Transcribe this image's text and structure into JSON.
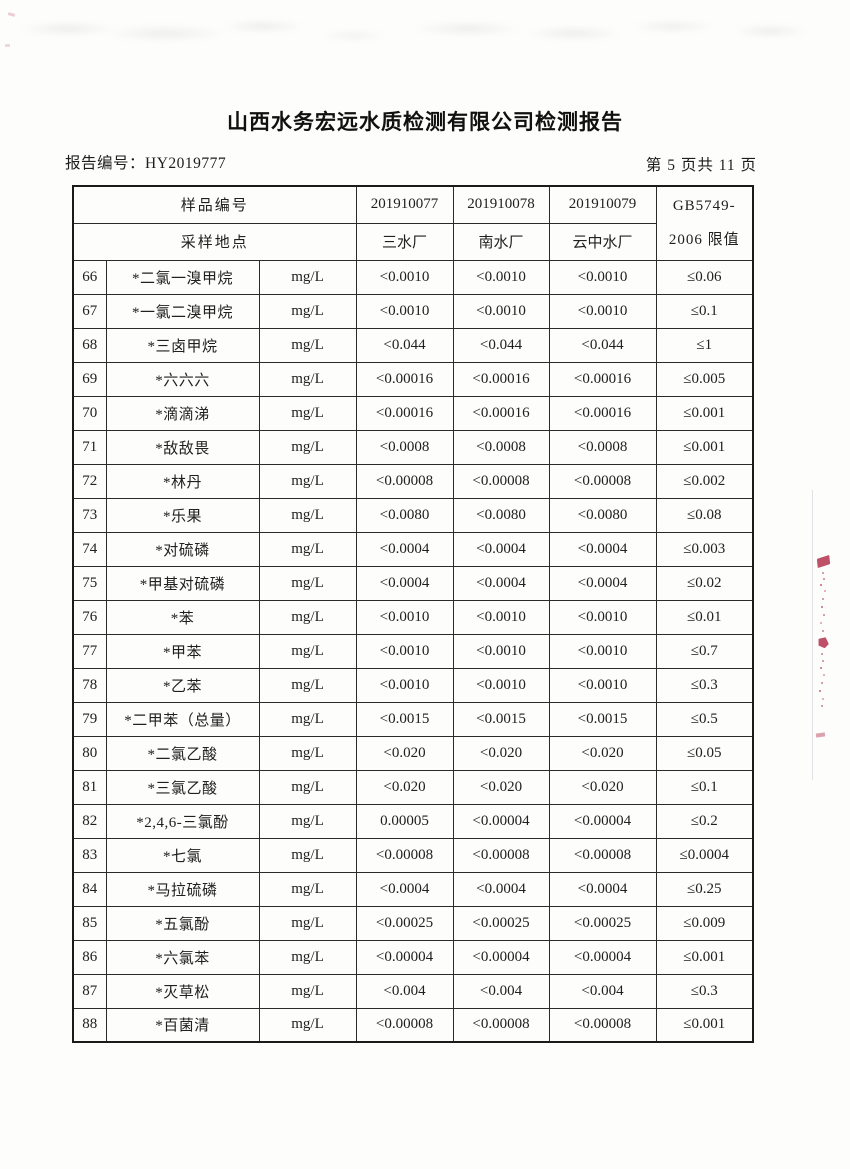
{
  "page": {
    "title": "山西水务宏远水质检测有限公司检测报告",
    "report_no": "报告编号：HY2019777",
    "page_info": "第 5 页共 11 页"
  },
  "table": {
    "header": {
      "sample_no_label": "样品编号",
      "sampling_site_label": "采样地点",
      "sample_ids": [
        "201910077",
        "201910078",
        "201910079"
      ],
      "sites": [
        "三水厂",
        "南水厂",
        "云中水厂"
      ],
      "limit_line1": "GB5749-",
      "limit_line2": "2006 限值"
    },
    "rows": [
      {
        "no": "66",
        "name": "*二氯一溴甲烷",
        "unit": "mg/L",
        "values": [
          "<0.0010",
          "<0.0010",
          "<0.0010"
        ],
        "limit": "≤0.06"
      },
      {
        "no": "67",
        "name": "*一氯二溴甲烷",
        "unit": "mg/L",
        "values": [
          "<0.0010",
          "<0.0010",
          "<0.0010"
        ],
        "limit": "≤0.1"
      },
      {
        "no": "68",
        "name": "*三卤甲烷",
        "unit": "mg/L",
        "values": [
          "<0.044",
          "<0.044",
          "<0.044"
        ],
        "limit": "≤1"
      },
      {
        "no": "69",
        "name": "*六六六",
        "unit": "mg/L",
        "values": [
          "<0.00016",
          "<0.00016",
          "<0.00016"
        ],
        "limit": "≤0.005"
      },
      {
        "no": "70",
        "name": "*滴滴涕",
        "unit": "mg/L",
        "values": [
          "<0.00016",
          "<0.00016",
          "<0.00016"
        ],
        "limit": "≤0.001"
      },
      {
        "no": "71",
        "name": "*敌敌畏",
        "unit": "mg/L",
        "values": [
          "<0.0008",
          "<0.0008",
          "<0.0008"
        ],
        "limit": "≤0.001"
      },
      {
        "no": "72",
        "name": "*林丹",
        "unit": "mg/L",
        "values": [
          "<0.00008",
          "<0.00008",
          "<0.00008"
        ],
        "limit": "≤0.002"
      },
      {
        "no": "73",
        "name": "*乐果",
        "unit": "mg/L",
        "values": [
          "<0.0080",
          "<0.0080",
          "<0.0080"
        ],
        "limit": "≤0.08"
      },
      {
        "no": "74",
        "name": "*对硫磷",
        "unit": "mg/L",
        "values": [
          "<0.0004",
          "<0.0004",
          "<0.0004"
        ],
        "limit": "≤0.003"
      },
      {
        "no": "75",
        "name": "*甲基对硫磷",
        "unit": "mg/L",
        "values": [
          "<0.0004",
          "<0.0004",
          "<0.0004"
        ],
        "limit": "≤0.02"
      },
      {
        "no": "76",
        "name": "*苯",
        "unit": "mg/L",
        "values": [
          "<0.0010",
          "<0.0010",
          "<0.0010"
        ],
        "limit": "≤0.01"
      },
      {
        "no": "77",
        "name": "*甲苯",
        "unit": "mg/L",
        "values": [
          "<0.0010",
          "<0.0010",
          "<0.0010"
        ],
        "limit": "≤0.7"
      },
      {
        "no": "78",
        "name": "*乙苯",
        "unit": "mg/L",
        "values": [
          "<0.0010",
          "<0.0010",
          "<0.0010"
        ],
        "limit": "≤0.3"
      },
      {
        "no": "79",
        "name": "*二甲苯（总量）",
        "unit": "mg/L",
        "values": [
          "<0.0015",
          "<0.0015",
          "<0.0015"
        ],
        "limit": "≤0.5"
      },
      {
        "no": "80",
        "name": "*二氯乙酸",
        "unit": "mg/L",
        "values": [
          "<0.020",
          "<0.020",
          "<0.020"
        ],
        "limit": "≤0.05"
      },
      {
        "no": "81",
        "name": "*三氯乙酸",
        "unit": "mg/L",
        "values": [
          "<0.020",
          "<0.020",
          "<0.020"
        ],
        "limit": "≤0.1"
      },
      {
        "no": "82",
        "name": "*2,4,6-三氯酚",
        "unit": "mg/L",
        "values": [
          "0.00005",
          "<0.00004",
          "<0.00004"
        ],
        "limit": "≤0.2"
      },
      {
        "no": "83",
        "name": "*七氯",
        "unit": "mg/L",
        "values": [
          "<0.00008",
          "<0.00008",
          "<0.00008"
        ],
        "limit": "≤0.0004"
      },
      {
        "no": "84",
        "name": "*马拉硫磷",
        "unit": "mg/L",
        "values": [
          "<0.0004",
          "<0.0004",
          "<0.0004"
        ],
        "limit": "≤0.25"
      },
      {
        "no": "85",
        "name": "*五氯酚",
        "unit": "mg/L",
        "values": [
          "<0.00025",
          "<0.00025",
          "<0.00025"
        ],
        "limit": "≤0.009"
      },
      {
        "no": "86",
        "name": "*六氯苯",
        "unit": "mg/L",
        "values": [
          "<0.00004",
          "<0.00004",
          "<0.00004"
        ],
        "limit": "≤0.001"
      },
      {
        "no": "87",
        "name": "*灭草松",
        "unit": "mg/L",
        "values": [
          "<0.004",
          "<0.004",
          "<0.004"
        ],
        "limit": "≤0.3"
      },
      {
        "no": "88",
        "name": "*百菌清",
        "unit": "mg/L",
        "values": [
          "<0.00008",
          "<0.00008",
          "<0.00008"
        ],
        "limit": "≤0.001"
      }
    ]
  },
  "artifacts": {
    "stamp_color": "#b3334e",
    "stamp_description": "partial-red-seal-fragments-right-edge"
  }
}
